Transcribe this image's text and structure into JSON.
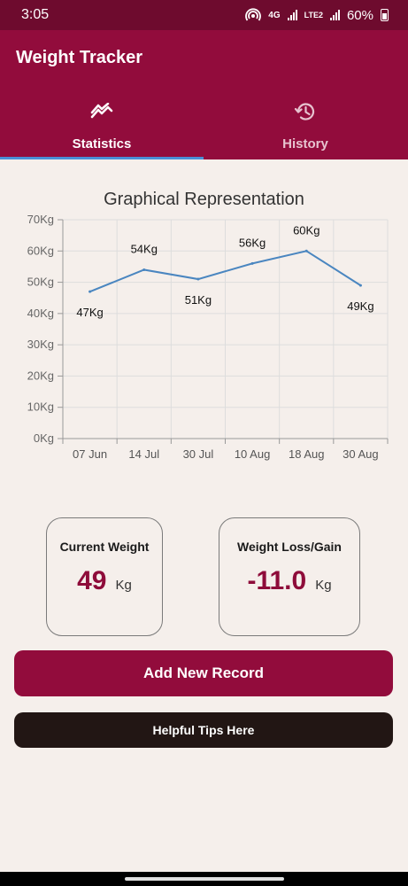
{
  "status_bar": {
    "time": "3:05",
    "network": "4G",
    "network2": "LTE2",
    "battery": "60%",
    "icons": [
      "hotspot-icon",
      "signal-icon",
      "battery-icon"
    ]
  },
  "app": {
    "title": "Weight Tracker",
    "primary_color": "#920c3c",
    "status_color": "#6e0b2e",
    "accent_color": "#4a8fd6"
  },
  "tabs": [
    {
      "label": "Statistics",
      "icon": "trending-icon",
      "selected": true
    },
    {
      "label": "History",
      "icon": "history-icon",
      "selected": false
    }
  ],
  "chart_title": "Graphical Representation",
  "chart_data": {
    "type": "line",
    "categories": [
      "07 Jun",
      "14 Jul",
      "30 Jul",
      "10 Aug",
      "18 Aug",
      "30 Aug"
    ],
    "values": [
      47,
      54,
      51,
      56,
      60,
      49
    ],
    "data_labels": [
      "47Kg",
      "54Kg",
      "51Kg",
      "56Kg",
      "60Kg",
      "49Kg"
    ],
    "y_ticks": [
      "0Kg",
      "10Kg",
      "20Kg",
      "30Kg",
      "40Kg",
      "50Kg",
      "60Kg",
      "70Kg"
    ],
    "ylim": [
      0,
      70
    ],
    "grid": true,
    "line_color": "#4a86c0"
  },
  "cards": {
    "current": {
      "label": "Current Weight",
      "value": "49",
      "unit": "Kg"
    },
    "change": {
      "label": "Weight Loss/Gain",
      "value": "-11.0",
      "unit": "Kg"
    }
  },
  "buttons": {
    "add": "Add New Record",
    "tips": "Helpful Tips Here"
  }
}
